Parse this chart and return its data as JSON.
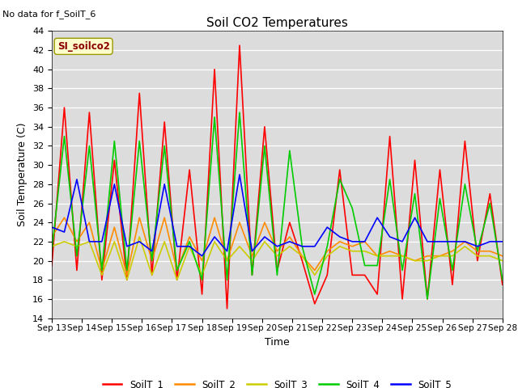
{
  "title": "Soil CO2 Temperatures",
  "xlabel": "Time",
  "ylabel": "Soil Temperature (C)",
  "note": "No data for f_SoilT_6",
  "legend_label": "SI_soilco2",
  "ylim": [
    14,
    44
  ],
  "yticks": [
    14,
    16,
    18,
    20,
    22,
    24,
    26,
    28,
    30,
    32,
    34,
    36,
    38,
    40,
    42,
    44
  ],
  "xtick_labels": [
    "Sep 13",
    "Sep 14",
    "Sep 15",
    "Sep 16",
    "Sep 17",
    "Sep 18",
    "Sep 19",
    "Sep 20",
    "Sep 21",
    "Sep 22",
    "Sep 23",
    "Sep 24",
    "Sep 25",
    "Sep 26",
    "Sep 27",
    "Sep 28"
  ],
  "series_colors": {
    "SoilT_1": "#ff0000",
    "SoilT_2": "#ff8c00",
    "SoilT_3": "#cccc00",
    "SoilT_4": "#00cc00",
    "SoilT_5": "#0000ff"
  },
  "SoilT_1": [
    19.5,
    36.0,
    19.0,
    35.5,
    18.0,
    30.5,
    18.0,
    37.5,
    18.5,
    34.5,
    18.0,
    29.5,
    16.5,
    40.0,
    15.0,
    42.5,
    18.5,
    34.0,
    19.0,
    24.0,
    20.0,
    15.5,
    18.5,
    29.5,
    18.5,
    18.5,
    16.5,
    33.0,
    16.0,
    30.5,
    16.0,
    29.5,
    17.5,
    32.5,
    20.0,
    27.0,
    17.5
  ],
  "SoilT_2": [
    22.5,
    24.5,
    22.0,
    24.0,
    19.0,
    23.5,
    18.5,
    24.5,
    20.0,
    24.5,
    19.0,
    22.5,
    20.0,
    24.5,
    20.0,
    24.0,
    20.5,
    24.0,
    21.0,
    22.5,
    20.5,
    19.0,
    21.0,
    22.0,
    21.5,
    22.0,
    20.5,
    21.0,
    20.5,
    20.0,
    20.5,
    20.5,
    21.0,
    22.0,
    21.0,
    21.0,
    20.5
  ],
  "SoilT_3": [
    21.5,
    22.0,
    21.5,
    22.0,
    18.5,
    22.0,
    18.0,
    22.5,
    18.5,
    22.0,
    18.0,
    21.5,
    18.5,
    22.0,
    20.0,
    21.5,
    20.0,
    22.0,
    20.5,
    21.5,
    20.5,
    18.5,
    20.5,
    21.5,
    21.0,
    21.0,
    20.5,
    20.5,
    20.5,
    20.0,
    20.0,
    20.5,
    20.5,
    21.5,
    20.5,
    20.5,
    20.0
  ],
  "SoilT_4": [
    21.0,
    33.0,
    20.5,
    32.0,
    19.0,
    32.5,
    19.0,
    32.5,
    20.0,
    32.0,
    19.0,
    22.0,
    18.0,
    35.0,
    18.0,
    35.5,
    18.5,
    32.0,
    18.5,
    31.5,
    21.5,
    16.5,
    21.5,
    28.5,
    25.5,
    19.5,
    19.5,
    28.5,
    19.0,
    27.0,
    16.0,
    26.5,
    19.0,
    28.0,
    21.0,
    26.0,
    18.0
  ],
  "SoilT_5": [
    23.5,
    23.0,
    28.5,
    22.0,
    22.0,
    28.0,
    21.5,
    22.0,
    21.0,
    28.0,
    21.5,
    21.5,
    20.5,
    22.5,
    21.0,
    29.0,
    21.0,
    22.5,
    21.5,
    22.0,
    21.5,
    21.5,
    23.5,
    22.5,
    22.0,
    22.0,
    24.5,
    22.5,
    22.0,
    24.5,
    22.0,
    22.0,
    22.0,
    22.0,
    21.5,
    22.0,
    22.0
  ]
}
